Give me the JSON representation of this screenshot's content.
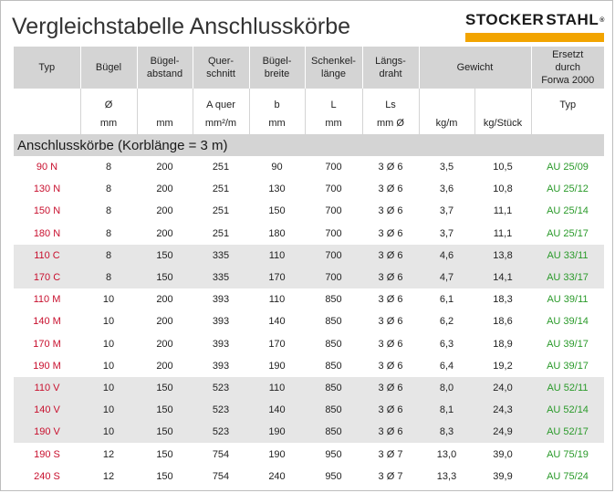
{
  "title": "Vergleichstabelle Anschlusskörbe",
  "logo": {
    "left": "STOCKER",
    "right": "STAHL",
    "mark": "®",
    "accent": "#f2a400"
  },
  "colors": {
    "typ": "#c8102e",
    "ersetzt": "#2a9a2a",
    "header_bg": "#d4d4d4",
    "group_bg": "#e6e6e6"
  },
  "headers": {
    "row1": [
      "Typ",
      "Bügel",
      "Bügel-\nabstand",
      "Quer-\nschnitt",
      "Bügel-\nbreite",
      "Schenkel-\nlänge",
      "Längs-\ndraht",
      "Gewicht",
      "Ersetzt\ndurch\nForwa 2000"
    ],
    "row2": [
      "",
      "Ø",
      "",
      "A quer",
      "b",
      "L",
      "Ls",
      "",
      "",
      "Typ"
    ],
    "row3": [
      "",
      "mm",
      "mm",
      "mm²/m",
      "mm",
      "mm",
      "mm Ø",
      "kg/m",
      "kg/Stück",
      ""
    ]
  },
  "section": "Anschlusskörbe (Korblänge = 3 m)",
  "rows": [
    {
      "typ": "90 N",
      "buegel": "8",
      "abstand": "200",
      "quer": "251",
      "breite": "90",
      "laenge": "700",
      "draht": "3 Ø 6",
      "kgm": "3,5",
      "kgst": "10,5",
      "ersetzt": "AU 25/09",
      "gray": false
    },
    {
      "typ": "130 N",
      "buegel": "8",
      "abstand": "200",
      "quer": "251",
      "breite": "130",
      "laenge": "700",
      "draht": "3 Ø 6",
      "kgm": "3,6",
      "kgst": "10,8",
      "ersetzt": "AU 25/12",
      "gray": false
    },
    {
      "typ": "150 N",
      "buegel": "8",
      "abstand": "200",
      "quer": "251",
      "breite": "150",
      "laenge": "700",
      "draht": "3 Ø 6",
      "kgm": "3,7",
      "kgst": "11,1",
      "ersetzt": "AU 25/14",
      "gray": false
    },
    {
      "typ": "180 N",
      "buegel": "8",
      "abstand": "200",
      "quer": "251",
      "breite": "180",
      "laenge": "700",
      "draht": "3 Ø 6",
      "kgm": "3,7",
      "kgst": "11,1",
      "ersetzt": "AU 25/17",
      "gray": false
    },
    {
      "typ": "110 C",
      "buegel": "8",
      "abstand": "150",
      "quer": "335",
      "breite": "110",
      "laenge": "700",
      "draht": "3 Ø 6",
      "kgm": "4,6",
      "kgst": "13,8",
      "ersetzt": "AU 33/11",
      "gray": true
    },
    {
      "typ": "170 C",
      "buegel": "8",
      "abstand": "150",
      "quer": "335",
      "breite": "170",
      "laenge": "700",
      "draht": "3 Ø 6",
      "kgm": "4,7",
      "kgst": "14,1",
      "ersetzt": "AU 33/17",
      "gray": true
    },
    {
      "typ": "110 M",
      "buegel": "10",
      "abstand": "200",
      "quer": "393",
      "breite": "110",
      "laenge": "850",
      "draht": "3 Ø 6",
      "kgm": "6,1",
      "kgst": "18,3",
      "ersetzt": "AU 39/11",
      "gray": false
    },
    {
      "typ": "140 M",
      "buegel": "10",
      "abstand": "200",
      "quer": "393",
      "breite": "140",
      "laenge": "850",
      "draht": "3 Ø 6",
      "kgm": "6,2",
      "kgst": "18,6",
      "ersetzt": "AU 39/14",
      "gray": false
    },
    {
      "typ": "170 M",
      "buegel": "10",
      "abstand": "200",
      "quer": "393",
      "breite": "170",
      "laenge": "850",
      "draht": "3 Ø 6",
      "kgm": "6,3",
      "kgst": "18,9",
      "ersetzt": "AU 39/17",
      "gray": false
    },
    {
      "typ": "190 M",
      "buegel": "10",
      "abstand": "200",
      "quer": "393",
      "breite": "190",
      "laenge": "850",
      "draht": "3 Ø 6",
      "kgm": "6,4",
      "kgst": "19,2",
      "ersetzt": "AU 39/17",
      "gray": false
    },
    {
      "typ": "110 V",
      "buegel": "10",
      "abstand": "150",
      "quer": "523",
      "breite": "110",
      "laenge": "850",
      "draht": "3 Ø 6",
      "kgm": "8,0",
      "kgst": "24,0",
      "ersetzt": "AU 52/11",
      "gray": true
    },
    {
      "typ": "140 V",
      "buegel": "10",
      "abstand": "150",
      "quer": "523",
      "breite": "140",
      "laenge": "850",
      "draht": "3 Ø 6",
      "kgm": "8,1",
      "kgst": "24,3",
      "ersetzt": "AU 52/14",
      "gray": true
    },
    {
      "typ": "190 V",
      "buegel": "10",
      "abstand": "150",
      "quer": "523",
      "breite": "190",
      "laenge": "850",
      "draht": "3 Ø 6",
      "kgm": "8,3",
      "kgst": "24,9",
      "ersetzt": "AU 52/17",
      "gray": true
    },
    {
      "typ": "190 S",
      "buegel": "12",
      "abstand": "150",
      "quer": "754",
      "breite": "190",
      "laenge": "950",
      "draht": "3 Ø 7",
      "kgm": "13,0",
      "kgst": "39,0",
      "ersetzt": "AU 75/19",
      "gray": false
    },
    {
      "typ": "240 S",
      "buegel": "12",
      "abstand": "150",
      "quer": "754",
      "breite": "240",
      "laenge": "950",
      "draht": "3 Ø 7",
      "kgm": "13,3",
      "kgst": "39,9",
      "ersetzt": "AU 75/24",
      "gray": false
    }
  ]
}
